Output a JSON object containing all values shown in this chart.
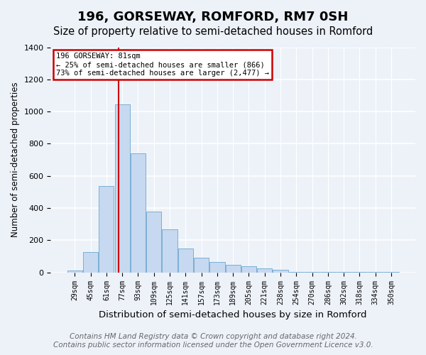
{
  "title": "196, GORSEWAY, ROMFORD, RM7 0SH",
  "subtitle": "Size of property relative to semi-detached houses in Romford",
  "xlabel": "Distribution of semi-detached houses by size in Romford",
  "ylabel": "Number of semi-detached properties",
  "categories": [
    "29sqm",
    "45sqm",
    "61sqm",
    "77sqm",
    "93sqm",
    "109sqm",
    "125sqm",
    "141sqm",
    "157sqm",
    "173sqm",
    "189sqm",
    "205sqm",
    "221sqm",
    "238sqm",
    "254sqm",
    "270sqm",
    "286sqm",
    "302sqm",
    "318sqm",
    "334sqm",
    "350sqm"
  ],
  "values": [
    10,
    125,
    535,
    1045,
    740,
    380,
    270,
    150,
    90,
    65,
    45,
    40,
    25,
    15,
    5,
    4,
    3,
    2,
    2,
    1,
    1
  ],
  "bar_color": "#c6d9f0",
  "bar_edge_color": "#7bafd4",
  "annotation_text": "196 GORSEWAY: 81sqm\n← 25% of semi-detached houses are smaller (866)\n73% of semi-detached houses are larger (2,477) →",
  "annotation_box_color": "#ffffff",
  "annotation_box_edge_color": "#cc0000",
  "vline_color": "#cc0000",
  "vline_x": 2.78,
  "ylim": [
    0,
    1400
  ],
  "yticks": [
    0,
    200,
    400,
    600,
    800,
    1000,
    1200,
    1400
  ],
  "footer_line1": "Contains HM Land Registry data © Crown copyright and database right 2024.",
  "footer_line2": "Contains public sector information licensed under the Open Government Licence v3.0.",
  "bg_color": "#edf2f9",
  "plot_bg_color": "#edf2f9",
  "grid_color": "#ffffff",
  "title_fontsize": 13,
  "subtitle_fontsize": 10.5,
  "xlabel_fontsize": 9.5,
  "ylabel_fontsize": 8.5,
  "footer_fontsize": 7.5
}
